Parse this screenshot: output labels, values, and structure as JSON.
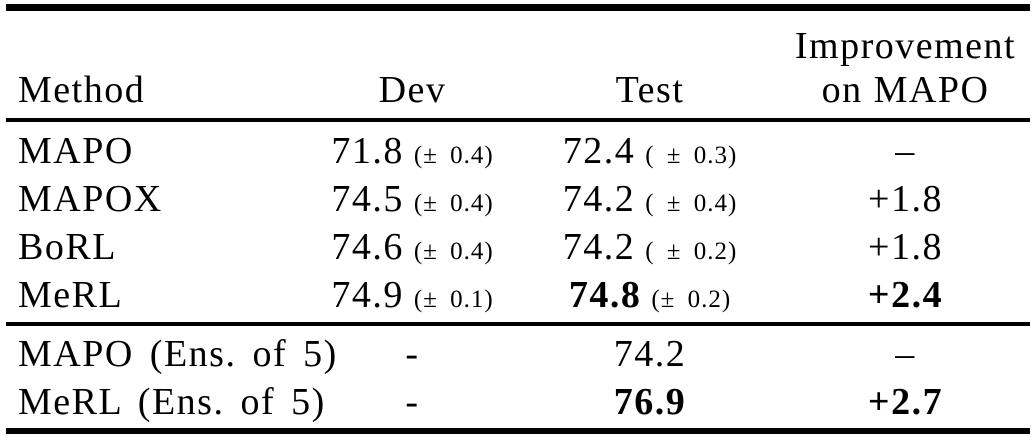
{
  "table": {
    "headers": {
      "method": "Method",
      "dev": "Dev",
      "test": "Test",
      "improvement_line1": "Improvement",
      "improvement_line2": "on MAPO"
    },
    "rows": [
      {
        "method": "MAPO",
        "dev": "71.8",
        "dev_unc": "(± 0.4)",
        "test": "72.4",
        "test_unc": "( ± 0.3)",
        "improvement": "–"
      },
      {
        "method": "MAPOX",
        "dev": "74.5",
        "dev_unc": "(± 0.4)",
        "test": "74.2",
        "test_unc": "( ± 0.4)",
        "improvement": "+1.8"
      },
      {
        "method": "BoRL",
        "dev": "74.6",
        "dev_unc": "(± 0.4)",
        "test": "74.2",
        "test_unc": "( ± 0.2)",
        "improvement": "+1.8"
      },
      {
        "method": "MeRL",
        "dev": "74.9",
        "dev_unc": "(± 0.1)",
        "test": "74.8",
        "test_unc": "(± 0.2)",
        "improvement": "+2.4"
      }
    ],
    "ensemble_rows": [
      {
        "method": "MAPO (Ens. of 5)",
        "dev": "-",
        "test": "74.2",
        "improvement": "–"
      },
      {
        "method": "MeRL (Ens. of 5)",
        "dev": "-",
        "test": "76.9",
        "improvement": "+2.7"
      }
    ]
  },
  "colors": {
    "text": "#000000",
    "background": "#ffffff",
    "rule": "#000000"
  }
}
